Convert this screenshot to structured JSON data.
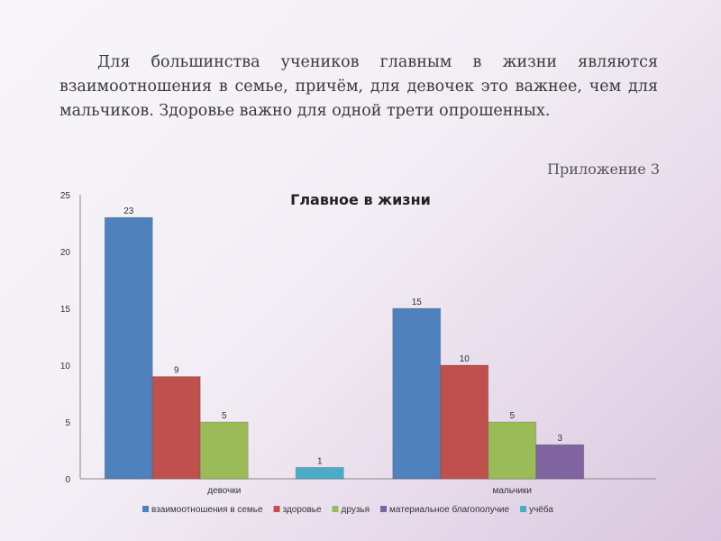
{
  "slide": {
    "intro_text": "Для большинства учеников главным в жизни являются взаимоотношения в семье, причём, для девочек это важнее, чем для мальчиков. Здоровье важно для одной трети опрошенных.",
    "appendix_label": "Приложение 3"
  },
  "chart_data": {
    "type": "bar",
    "title": "Главное в жизни",
    "xlabel": "",
    "ylabel": "",
    "categories": [
      "девочки",
      "мальчики"
    ],
    "ylim": [
      0,
      25
    ],
    "yticks": [
      "0",
      "5",
      "10",
      "15",
      "20",
      "25"
    ],
    "grid": false,
    "legend_position": "bottom",
    "series": [
      {
        "name": "взаимоотношения в семье",
        "color": "#4f81bd",
        "values": [
          23,
          15
        ]
      },
      {
        "name": "здоровье",
        "color": "#c0504d",
        "values": [
          9,
          10
        ]
      },
      {
        "name": "друзья",
        "color": "#9bbb59",
        "values": [
          5,
          5
        ]
      },
      {
        "name": "материальное благополучие",
        "color": "#8064a2",
        "values": [
          null,
          3
        ]
      },
      {
        "name": "учёба",
        "color": "#4bacc6",
        "values": [
          1,
          null
        ]
      }
    ]
  }
}
